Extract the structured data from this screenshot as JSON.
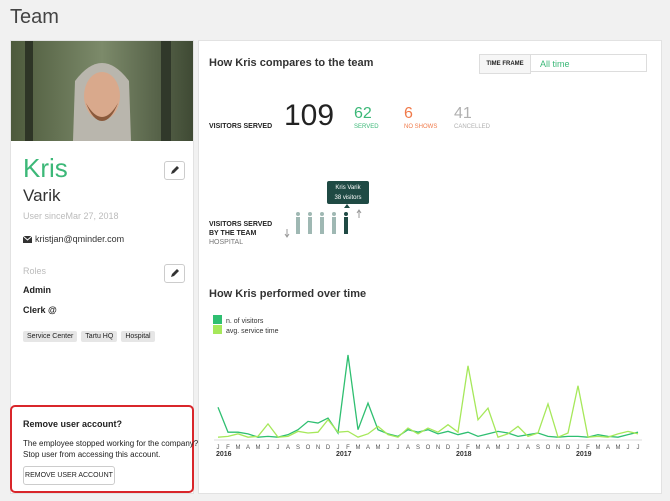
{
  "header": {
    "title": "Team"
  },
  "profile": {
    "first_name": "Kris",
    "last_name": "Varik",
    "user_since": "User sinceMar 27, 2018",
    "email": "kristjan@qminder.com",
    "roles_label": "Roles",
    "roles": [
      "Admin",
      "Clerk @"
    ],
    "locations": [
      "Service Center",
      "Tartu HQ",
      "Hospital"
    ]
  },
  "remove_account": {
    "title": "Remove user account?",
    "text": [
      "The employee stopped working for the company?",
      "Stop user from accessing this account."
    ],
    "button": "REMOVE USER ACCOUNT"
  },
  "compare": {
    "title": "How Kris compares to the team",
    "time_frame_label": "TIME FRAME",
    "time_frame": "All time",
    "visitors_served_label": "VISITORS SERVED",
    "visitors_served": 109,
    "stats": [
      {
        "value": 62,
        "label": "SERVED",
        "color": "#3cb878"
      },
      {
        "value": 6,
        "label": "NO SHOWS",
        "color": "#f07a4a"
      },
      {
        "value": 41,
        "label": "CANCELLED",
        "color": "#b0b0b0"
      }
    ],
    "team_label": [
      "VISITORS SERVED",
      "BY THE TEAM"
    ],
    "team_location": "HOSPITAL",
    "tooltip": {
      "name": "Kris Varik",
      "visitors": "38 visitors"
    }
  },
  "chart_data": {
    "type": "line",
    "title": "How Kris performed over time",
    "categories": [
      "J",
      "F",
      "M",
      "A",
      "M",
      "J",
      "J",
      "A",
      "S",
      "O",
      "N",
      "D",
      "J",
      "F",
      "M",
      "A",
      "M",
      "J",
      "J",
      "A",
      "S",
      "O",
      "N",
      "D",
      "J",
      "F",
      "M",
      "A",
      "M",
      "J",
      "J",
      "A",
      "S",
      "O",
      "N",
      "D",
      "J",
      "F",
      "M",
      "A",
      "M",
      "J",
      "J"
    ],
    "years": [
      "2016",
      "2017",
      "2018",
      "2019"
    ],
    "ylim": [
      0,
      100
    ],
    "series": [
      {
        "name": "n. of visitors",
        "color": "#2fbf71",
        "values": [
          37,
          7,
          7,
          5,
          1,
          2,
          1,
          4,
          10,
          20,
          18,
          24,
          6,
          100,
          10,
          42,
          10,
          5,
          2,
          10,
          7,
          10,
          5,
          8,
          4,
          7,
          2,
          5,
          8,
          6,
          2,
          4,
          6,
          2,
          1,
          2,
          2,
          1,
          4,
          2,
          1,
          4,
          7
        ]
      },
      {
        "name": "avg. service time",
        "color": "#a6e85a",
        "values": [
          1,
          2,
          5,
          1,
          2,
          17,
          1,
          2,
          8,
          6,
          7,
          22,
          7,
          8,
          1,
          5,
          14,
          4,
          1,
          12,
          5,
          12,
          7,
          16,
          7,
          87,
          22,
          36,
          1,
          5,
          14,
          2,
          6,
          41,
          1,
          6,
          63,
          1,
          2,
          1,
          5,
          8,
          5
        ]
      }
    ]
  }
}
